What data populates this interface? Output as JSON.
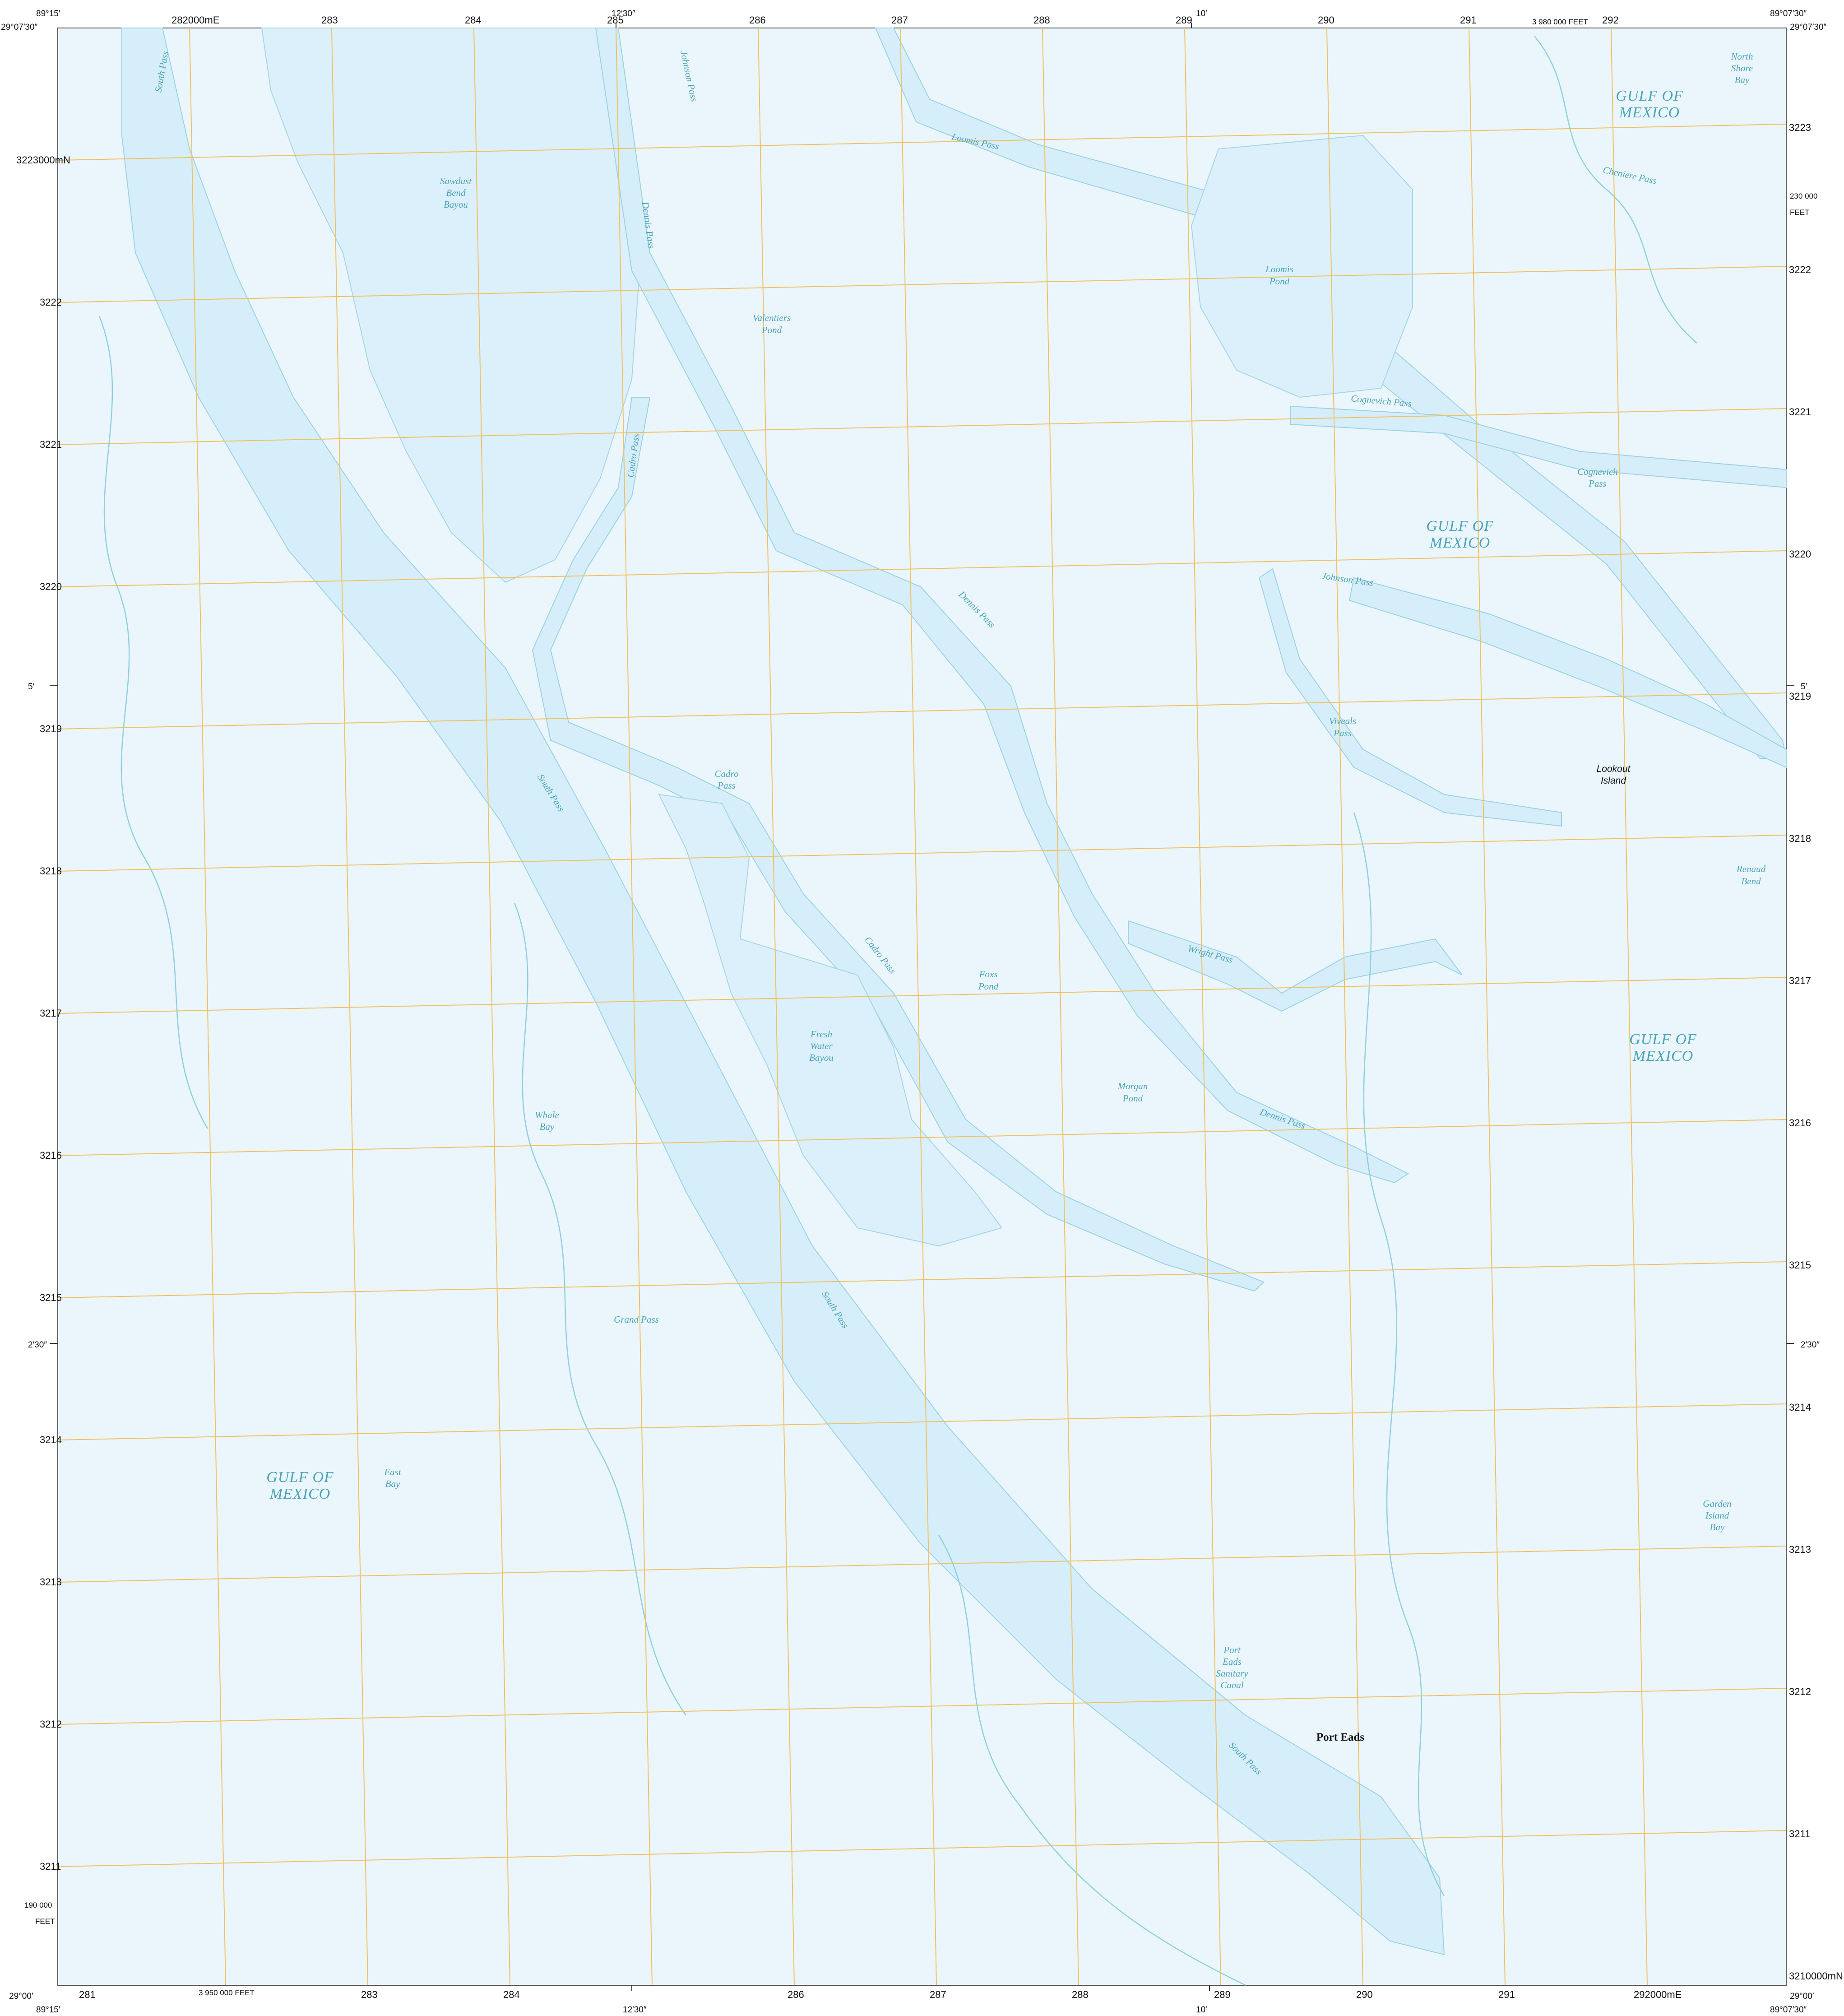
{
  "map": {
    "water_color": "#eaf6fc",
    "channel_color": "#d6eef9",
    "grid_color": "#f0c060",
    "label_color": "#4aa3b8"
  },
  "corners": {
    "top_left_lon": "89°15′",
    "top_left_lat": "29°07′30″",
    "top_right_lon": "89°07′30″",
    "top_right_lat": "29°07′30″",
    "bottom_left_lon": "89°15′",
    "bottom_left_lat": "29°00′",
    "bottom_right_lon": "89°07′30″",
    "bottom_right_lat": "29°00′"
  },
  "top_ticks": [
    "282000mE",
    "283",
    "284",
    "285",
    "286",
    "287",
    "288",
    "289",
    "290",
    "291",
    "292"
  ],
  "bottom_ticks": [
    "281",
    "283",
    "284",
    "286",
    "287",
    "288",
    "289",
    "290",
    "291",
    "292000mE"
  ],
  "left_ticks": [
    "3223000mN",
    "3222",
    "3221",
    "3220",
    "3219",
    "3218",
    "3217",
    "3216",
    "3215",
    "3214",
    "3213",
    "3212",
    "3211"
  ],
  "right_ticks": [
    "3223",
    "3222",
    "3221",
    "3220",
    "3219",
    "3218",
    "3217",
    "3216",
    "3215",
    "3214",
    "3213",
    "3212",
    "3211",
    "3210000mN"
  ],
  "minute_marks": {
    "top_mid": "12′30″",
    "top_10": "10′",
    "bottom_mid": "12′30″",
    "bottom_10": "10′",
    "left_5": "5′",
    "left_2_30": "2′30″",
    "right_5": "5′",
    "right_2_30": "2′30″"
  },
  "feet_labels": {
    "top": "3 980 000 FEET",
    "bottom": "3 950 000 FEET",
    "right_value": "230 000",
    "right_unit": "FEET",
    "left_value": "190 000",
    "left_unit": "FEET"
  },
  "labels": {
    "gulf_nw_1": "GULF OF",
    "gulf_nw_2": "MEXICO",
    "gulf_mid_1": "GULF OF",
    "gulf_mid_2": "MEXICO",
    "gulf_e_1": "GULF OF",
    "gulf_e_2": "MEXICO",
    "gulf_sw_1": "GULF OF",
    "gulf_sw_2": "MEXICO",
    "north_shore_1": "North",
    "north_shore_2": "Shore",
    "north_shore_3": "Bay",
    "south_pass_top": "South Pass",
    "johnson_pass_top": "Johnson Pass",
    "loomis_pass": "Loomis Pass",
    "cheniere_pass": "Cheniere Pass",
    "sawdust_1": "Sawdust",
    "sawdust_2": "Bend",
    "sawdust_3": "Bayou",
    "dennis_pass_top": "Dennis Pass",
    "loomis_pond_1": "Loomis",
    "loomis_pond_2": "Pond",
    "valentiers_1": "Valentiers",
    "valentiers_2": "Pond",
    "cognevich_pass_a": "Cognevich Pass",
    "cognevich_1": "Cognevich",
    "cognevich_2": "Pass",
    "cadro_pass_top": "Cadro Pass",
    "johnson_pass_mid": "Johnson Pass",
    "dennis_pass_mid": "Dennis Pass",
    "viveals_1": "Viveals",
    "viveals_2": "Pass",
    "lookout_1": "Lookout",
    "lookout_2": "Island",
    "cadro_mid_1": "Cadro",
    "cadro_mid_2": "Pass",
    "south_pass_mid": "South Pass",
    "renaud_1": "Renaud",
    "renaud_2": "Bend",
    "cadro_pass_low": "Cadro Pass",
    "wright_pass": "Wright Pass",
    "foxs_1": "Foxs",
    "foxs_2": "Pond",
    "fresh_1": "Fresh",
    "fresh_2": "Water",
    "fresh_3": "Bayou",
    "morgan_1": "Morgan",
    "morgan_2": "Pond",
    "dennis_pass_low": "Dennis Pass",
    "whale_1": "Whale",
    "whale_2": "Bay",
    "grand_pass": "Grand Pass",
    "south_pass_low": "South Pass",
    "east_bay_1": "East",
    "east_bay_2": "Bay",
    "garden_1": "Garden",
    "garden_2": "Island",
    "garden_3": "Bay",
    "port_eads_canal_1": "Port",
    "port_eads_canal_2": "Eads",
    "port_eads_canal_3": "Sanitary",
    "port_eads_canal_4": "Canal",
    "port_eads": "Port Eads",
    "south_pass_bottom": "South Pass"
  }
}
